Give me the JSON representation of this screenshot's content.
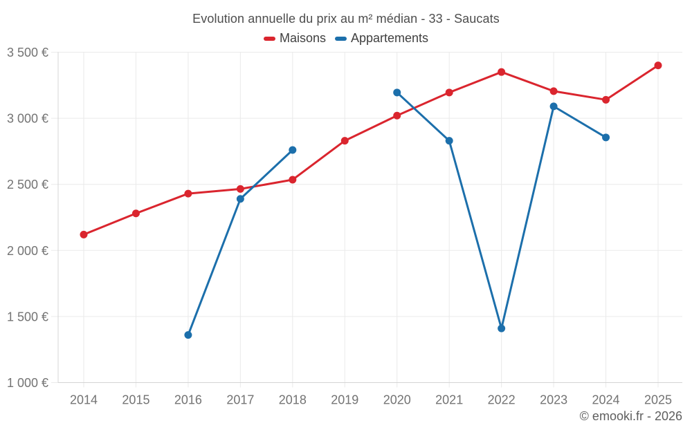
{
  "header": {
    "title": "Evolution annuelle du prix au m² médian - 33 - Saucats"
  },
  "footer": {
    "credit": "© emooki.fr - 2026"
  },
  "colors": {
    "maisons": "#da252e",
    "appartements": "#1c6fab",
    "gridline": "#eaeaea",
    "axis_line": "#d4d4d4",
    "tick_text": "#737373",
    "title_text": "#4d4d4d",
    "legend_text": "#404040",
    "credit_text": "#5e5e5e",
    "background": "#ffffff"
  },
  "chart_data": {
    "type": "line",
    "title": "Evolution annuelle du prix au m² médian - 33 - Saucats",
    "xlabel": "",
    "ylabel": "",
    "categories": [
      "2014",
      "2015",
      "2016",
      "2017",
      "2018",
      "2019",
      "2020",
      "2021",
      "2022",
      "2023",
      "2024",
      "2025"
    ],
    "series": [
      {
        "name": "Maisons",
        "color": "#da252e",
        "values": [
          2120,
          2280,
          2430,
          2465,
          2535,
          2830,
          3020,
          3195,
          3350,
          3205,
          3140,
          3400
        ]
      },
      {
        "name": "Appartements",
        "color": "#1c6fab",
        "values": [
          null,
          null,
          1360,
          2390,
          2760,
          null,
          3195,
          2830,
          1410,
          3090,
          2855,
          null
        ]
      }
    ],
    "ylim": [
      1000,
      3500
    ],
    "y_ticks": [
      1000,
      1500,
      2000,
      2500,
      3000,
      3500
    ],
    "y_tick_labels": [
      "1 000 €",
      "1 500 €",
      "2 000 €",
      "2 500 €",
      "3 000 €",
      "3 500 €"
    ],
    "grid": true,
    "legend_position": "top"
  }
}
